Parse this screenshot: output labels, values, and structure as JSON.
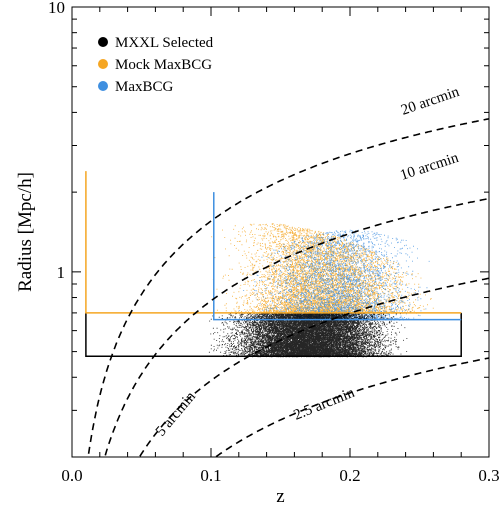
{
  "chart_data": {
    "type": "scatter",
    "title": "",
    "xlabel": "z",
    "ylabel": "Radius [Mpc/h]",
    "xlim": [
      0.0,
      0.3
    ],
    "ylim": [
      0.2,
      10
    ],
    "yscale": "log",
    "x_ticks": [
      0.0,
      0.1,
      0.2,
      0.3
    ],
    "x_tick_labels": [
      "0.0",
      "0.1",
      "0.2",
      "0.3"
    ],
    "y_ticks": [
      1,
      10
    ],
    "y_tick_labels": [
      "1",
      "10"
    ],
    "legend": {
      "placement": "top-left",
      "entries": [
        {
          "name": "MXXL Selected",
          "color": "#000000"
        },
        {
          "name": "Mock MaxBCG",
          "color": "#f5a623"
        },
        {
          "name": "MaxBCG",
          "color": "#3f8fe0"
        }
      ]
    },
    "series": [
      {
        "name": "MXXL Selected",
        "color": "#000000",
        "point_cloud": {
          "z_range": [
            0.01,
            0.28
          ],
          "radius_range": [
            0.48,
            0.7
          ],
          "approx_points": 16000
        }
      },
      {
        "name": "Mock MaxBCG",
        "color": "#f5a623",
        "point_cloud": {
          "z_range": [
            0.01,
            0.28
          ],
          "radius_range": [
            0.7,
            2.0
          ],
          "approx_points": 9000
        }
      },
      {
        "name": "MaxBCG",
        "color": "#3f8fe0",
        "point_cloud": {
          "z_range": [
            0.1,
            0.28
          ],
          "radius_range": [
            0.66,
            1.7
          ],
          "approx_points": 5000
        }
      }
    ],
    "selection_boxes": [
      {
        "series": "MXXL Selected",
        "z_min": 0.01,
        "z_max": 0.28,
        "radius_min": 0.48,
        "radius_max": 0.7
      },
      {
        "series": "Mock MaxBCG",
        "z_min": 0.01,
        "z_max": 0.28,
        "radius_min": 0.7,
        "radius_max": 2.4
      },
      {
        "series": "MaxBCG",
        "z_min": 0.102,
        "z_max": 0.28,
        "radius_min": 0.66,
        "radius_max": 2.0
      }
    ],
    "angular_curves": [
      {
        "label": "20 arcmin",
        "arcmin": 20
      },
      {
        "label": "10 arcmin",
        "arcmin": 10
      },
      {
        "label": "5 arcmin",
        "arcmin": 5
      },
      {
        "label": "2.5 arcmin",
        "arcmin": 2.5
      }
    ]
  }
}
